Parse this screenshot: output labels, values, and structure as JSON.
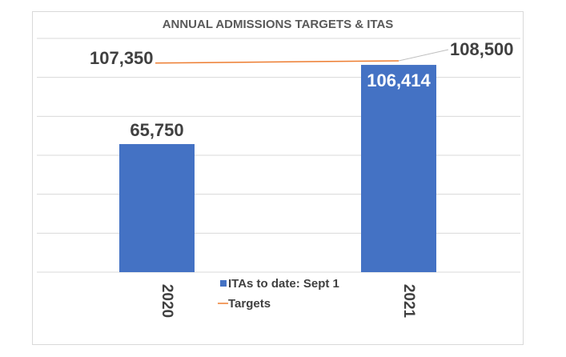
{
  "chart_data": {
    "type": "bar",
    "title": "ANNUAL ADMISSIONS TARGETS & ITAS",
    "categories": [
      "2020",
      "2021"
    ],
    "series": [
      {
        "name": "ITAs to date: Sept 1",
        "type": "bar",
        "values": [
          65750,
          106414
        ],
        "labels": [
          "65,750",
          "106,414"
        ],
        "color": "#4472C4"
      },
      {
        "name": "Targets",
        "type": "line",
        "values": [
          107350,
          108500
        ],
        "labels": [
          "107,350",
          "108,500"
        ],
        "color": "#ED7D31"
      }
    ],
    "ylim": [
      0,
      120000
    ],
    "grid": true,
    "legend_position": "bottom-center"
  }
}
